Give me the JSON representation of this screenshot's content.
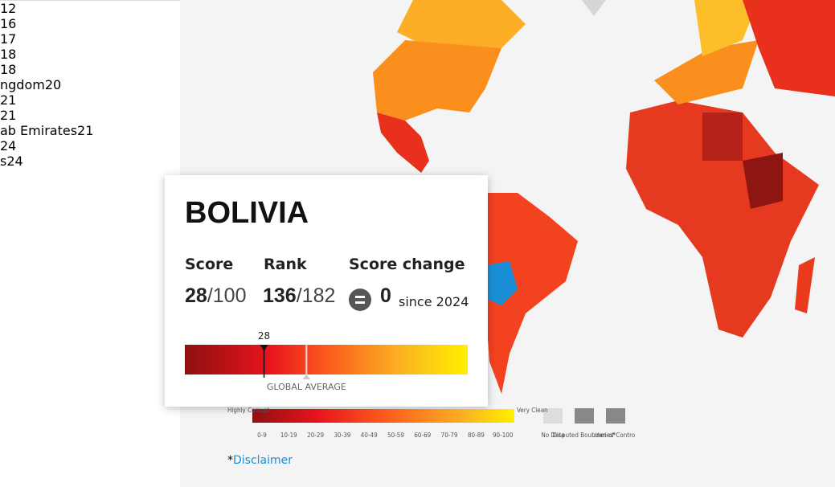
{
  "table": {
    "rows": [
      {
        "rank": "12"
      },
      {
        "rank": "16"
      },
      {
        "rank": "17"
      },
      {
        "rank": "18"
      },
      {
        "rank": "18"
      },
      {
        "name": "ngdom",
        "rank": "20"
      },
      {
        "rank": "21"
      },
      {
        "rank": "21"
      },
      {
        "name": "ab Emirates",
        "rank": "21"
      },
      {
        "rank": "24"
      },
      {
        "name": "s",
        "rank": "24"
      }
    ]
  },
  "popup": {
    "title": "BOLIVIA",
    "score_label": "Score",
    "score": 28,
    "separator": "/",
    "score_max": 100,
    "rank_label": "Rank",
    "rank": 136,
    "rank_total": 182,
    "change_label": "Score change",
    "change": 0,
    "change_since": "since 2024",
    "marker_label": "28",
    "global_average": 43,
    "global_average_label": "GLOBAL AVERAGE"
  },
  "legend": {
    "low_label": "Highly Corrupt",
    "high_label": "Very Clean",
    "ranges": [
      "0-9",
      "10-19",
      "20-29",
      "30-39",
      "40-49",
      "50-59",
      "60-69",
      "70-79",
      "80-89",
      "90-100"
    ],
    "no_data": "No Data",
    "disputed": "Disputed Boundaries*",
    "lines_of_control": "Lines of Control*"
  },
  "footer": {
    "asterisk": "*",
    "disclaimer": "Disclaimer"
  }
}
